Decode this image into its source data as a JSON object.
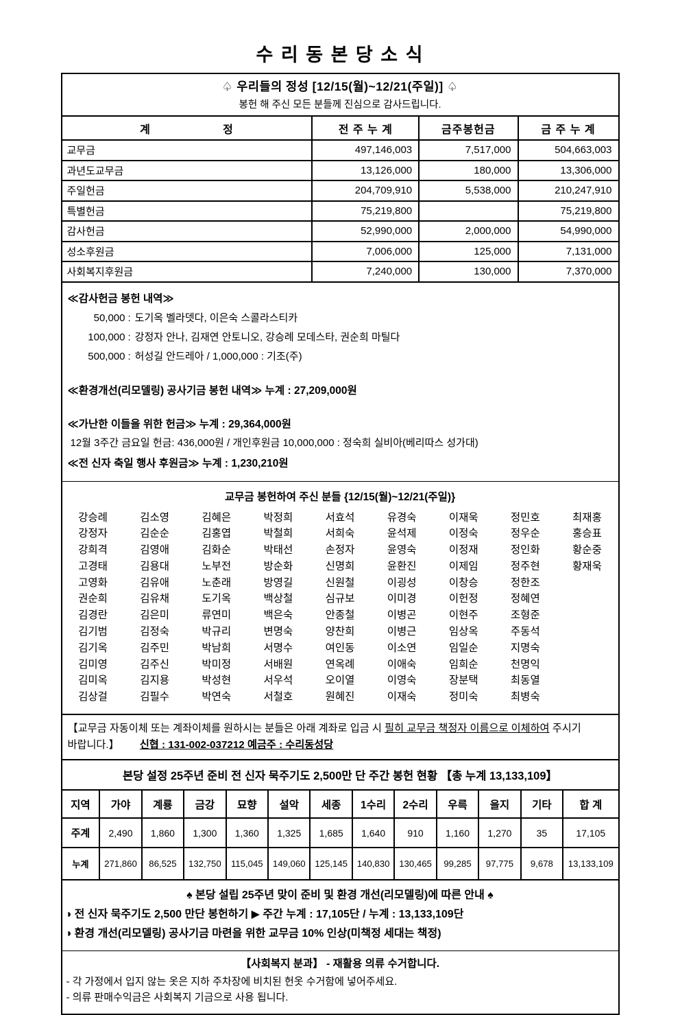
{
  "page_title": "수 리 동 본 당 소 식",
  "devotion": {
    "title": "♤  우리들의 정성  [12/15(월)~12/21(주일)]  ♤",
    "subtitle": "봉헌 해 주신 모든 분들께 진심으로 감사드립니다."
  },
  "offering_table": {
    "header": {
      "col1_left": "계",
      "col1_right": "정",
      "col2": "전 주 누 계",
      "col3": "금주봉헌금",
      "col4": "금 주 누 계"
    },
    "rows": [
      {
        "name": "교무금",
        "prev": "497,146,003",
        "week": "7,517,000",
        "total": "504,663,003"
      },
      {
        "name": "과년도교무금",
        "prev": "13,126,000",
        "week": "180,000",
        "total": "13,306,000"
      },
      {
        "name": "주일헌금",
        "prev": "204,709,910",
        "week": "5,538,000",
        "total": "210,247,910"
      },
      {
        "name": "특별헌금",
        "prev": "75,219,800",
        "week": "",
        "total": "75,219,800"
      },
      {
        "name": "감사헌금",
        "prev": "52,990,000",
        "week": "2,000,000",
        "total": "54,990,000"
      },
      {
        "name": "성소후원금",
        "prev": "7,006,000",
        "week": "125,000",
        "total": "7,131,000"
      },
      {
        "name": "사회복지후원금",
        "prev": "7,240,000",
        "week": "130,000",
        "total": "7,370,000"
      }
    ]
  },
  "thanksgiving": {
    "title": "≪감사헌금 봉헌 내역≫",
    "separator": ":",
    "lines": [
      {
        "amount": "50,000",
        "names": "도기옥 벨라뎃다, 이은숙 스콜라스티카"
      },
      {
        "amount": "100,000",
        "names": "강정자 안나, 김재연 안토니오, 강승례 모데스타, 권순희 마틸다"
      },
      {
        "amount": "500,000",
        "names": "허성길 안드레아    /    1,000,000 : 기조(주)"
      }
    ]
  },
  "remodeling": {
    "title": "≪환경개선(리모델링) 공사기금 봉헌 내역≫",
    "total": "누계 : 27,209,000원"
  },
  "poor": {
    "title": "≪가난한 이들을 위한 헌금≫",
    "total": "누계 : 29,364,000원",
    "detail": "12월 3주간 금요일 헌금: 436,000원    / 개인후원금 10,000,000 : 정숙희 실비아(베리따스 성가대)"
  },
  "feast": {
    "title": "≪전 신자 축일 행사 후원금≫",
    "total": "누계 : 1,230,210원"
  },
  "donors": {
    "title": "교무금 봉헌하여 주신 분들 {12/15(월)~12/21(주일)}",
    "rows": [
      [
        "강승례",
        "김소영",
        "김혜은",
        "박정희",
        "서효석",
        "유경숙",
        "이재욱",
        "정민호",
        "최재홍"
      ],
      [
        "강정자",
        "김순순",
        "김홍엽",
        "박철희",
        "서희숙",
        "윤석제",
        "이정숙",
        "정우순",
        "홍승표"
      ],
      [
        "강희격",
        "김영애",
        "김화순",
        "박태선",
        "손정자",
        "윤영숙",
        "이정재",
        "정인화",
        "황순중"
      ],
      [
        "고경태",
        "김용대",
        "노부전",
        "방순화",
        "신명희",
        "윤환진",
        "이제임",
        "정주현",
        "황재욱"
      ],
      [
        "고영화",
        "김유애",
        "노춘래",
        "방영길",
        "신원철",
        "이굉성",
        "이창승",
        "정한조"
      ],
      [
        "권순희",
        "김유채",
        "도기옥",
        "백상철",
        "심규보",
        "이미경",
        "이헌정",
        "정혜연"
      ],
      [
        "김경란",
        "김은미",
        "류연미",
        "백은숙",
        "안종철",
        "이병곤",
        "이현주",
        "조형준"
      ],
      [
        "김기범",
        "김정숙",
        "박규리",
        "변명숙",
        "양찬희",
        "이병근",
        "임상옥",
        "주동석"
      ],
      [
        "김기옥",
        "김주민",
        "박남희",
        "서명수",
        "여인동",
        "이소연",
        "임일순",
        "지명숙"
      ],
      [
        "김미영",
        "김주신",
        "박미정",
        "서배원",
        "연옥례",
        "이애숙",
        "임희순",
        "천명익"
      ],
      [
        "김미옥",
        "김지용",
        "박성현",
        "서우석",
        "오이열",
        "이영숙",
        "장분택",
        "최동열"
      ],
      [
        "김상걸",
        "김필수",
        "박연숙",
        "서철호",
        "원혜진",
        "이재숙",
        "정미숙",
        "최병숙"
      ]
    ]
  },
  "transfer": {
    "before": "【교무금 자동이체 또는 계좌이체를 원하시는 분들은 아래 계좌로 입금 시 ",
    "underline": "필히 교무금 책정자 이름으로 이체하여",
    "after": " 주시기 바랍니다.】",
    "account": "신협 : 131-002-037212 예금주 : 수리동성당"
  },
  "rosary": {
    "header": "본당 설정 25주년 준비 전 신자 묵주기도 2,500만 단 주간 봉헌 현황 【총 누계 13,133,109】",
    "region_label": "지역",
    "columns": [
      "가야",
      "계룡",
      "금강",
      "묘향",
      "설악",
      "세종",
      "1수리",
      "2수리",
      "우륵",
      "을지",
      "기타",
      "합 계"
    ],
    "rows": [
      {
        "label": "주계",
        "values": [
          "2,490",
          "1,860",
          "1,300",
          "1,360",
          "1,325",
          "1,685",
          "1,640",
          "910",
          "1,160",
          "1,270",
          "35",
          "17,105"
        ]
      },
      {
        "label": "누계",
        "values": [
          "271,860",
          "86,525",
          "132,750",
          "115,045",
          "149,060",
          "125,145",
          "140,830",
          "130,465",
          "99,285",
          "97,775",
          "9,678",
          "13,133,109"
        ]
      }
    ]
  },
  "notice25": {
    "title": "♠ 본당 설립 25주년 맞이 준비 및 환경 개선(리모델링)에 따른 안내 ♠",
    "items": [
      "◑ 전 신자 묵주기도 2,500 만단 봉헌하기 ▶ 주간 누계 : 17,105단 / 누계 : 13,133,109단",
      "◑ 환경 개선(리모델링) 공사기금 마련을 위한 교무금 10% 인상(미책정 세대는 책정)"
    ]
  },
  "welfare": {
    "title": "【사회복지 분과】 - 재활용 의류 수거합니다.",
    "items": [
      "- 각 가정에서 입지 않는 옷은 지하 주차장에 비치된 헌옷 수거함에 넣어주세요.",
      "- 의류 판매수익금은 사회복지 기금으로 사용 됩니다."
    ]
  }
}
